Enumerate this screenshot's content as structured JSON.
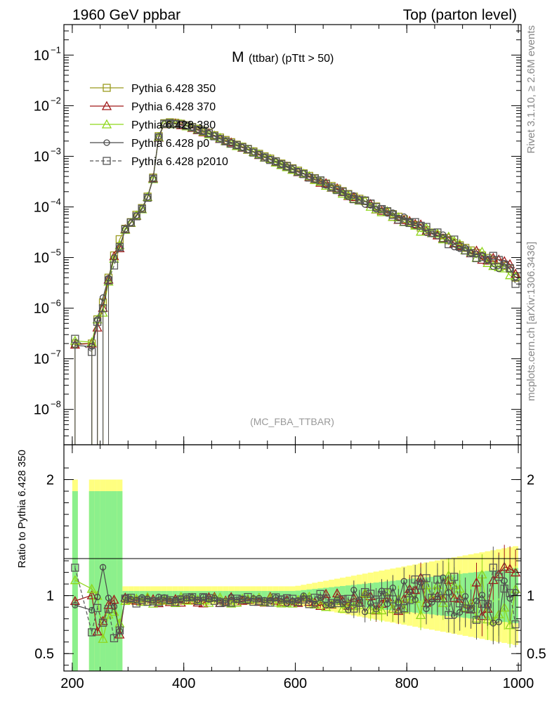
{
  "header": {
    "left": "1960 GeV ppbar",
    "right": "Top (parton level)"
  },
  "plot": {
    "title_main": "M",
    "title_sub": "(ttbar) (pTtt > 50)",
    "analysis_tag": "(MC_FBA_TTBAR)",
    "side_label_top": "Rivet 3.1.10, ≥ 2.6M events",
    "side_label_bottom": "mcplots.cern.ch [arXiv:1306.3436]",
    "ratio_ylabel": "Ratio to Pythia 6.428 350"
  },
  "colors": {
    "p350": "#9a9a1e",
    "p370": "#a01818",
    "p380": "#8fd61a",
    "p0": "#4a4a4a",
    "p2010": "#555555",
    "band_yellow": "#ffff80",
    "band_green": "#8cf08c"
  },
  "chart_data": {
    "type": "line",
    "x_axis": {
      "range": [
        185,
        1005
      ],
      "ticks": [
        "200",
        "400",
        "600",
        "800",
        "1000"
      ]
    },
    "main_y_axis": {
      "scale": "log",
      "range": [
        2e-09,
        0.4
      ],
      "tick_labels": [
        "10^-1",
        "10^-2",
        "10^-3",
        "10^-4",
        "10^-5",
        "10^-6",
        "10^-7",
        "10^-8"
      ]
    },
    "ratio_y_axis": {
      "range": [
        0.35,
        2.3
      ],
      "tick_labels": [
        "0.5",
        "1",
        "2"
      ]
    },
    "x": [
      205,
      235,
      245,
      255,
      265,
      275,
      285,
      295,
      305,
      315,
      325,
      335,
      345,
      355,
      365,
      375,
      385,
      395,
      405,
      415,
      425,
      435,
      445,
      455,
      465,
      475,
      485,
      495,
      505,
      515,
      525,
      535,
      545,
      555,
      565,
      575,
      585,
      595,
      605,
      615,
      625,
      635,
      645,
      655,
      665,
      675,
      685,
      695,
      705,
      715,
      725,
      735,
      745,
      755,
      765,
      775,
      785,
      795,
      805,
      815,
      825,
      835,
      845,
      855,
      865,
      875,
      885,
      895,
      905,
      915,
      925,
      935,
      945,
      955,
      965,
      975,
      985,
      995
    ],
    "series": [
      {
        "name": "Pythia 6.428 350",
        "key": "p350",
        "marker": "square",
        "dashed": false,
        "values": [
          2e-07,
          2e-07,
          6e-07,
          1.3e-06,
          4e-06,
          1.1e-05,
          2.3e-05,
          3.7e-05,
          5e-05,
          7e-05,
          9.5e-05,
          0.00016,
          0.00038,
          0.0025,
          0.0045,
          0.0047,
          0.0046,
          0.0044,
          0.0041,
          0.0038,
          0.0035,
          0.0032,
          0.0029,
          0.0026,
          0.00235,
          0.0021,
          0.0019,
          0.0017,
          0.00155,
          0.0014,
          0.00125,
          0.00112,
          0.001,
          0.0009,
          0.0008,
          0.00072,
          0.00065,
          0.00058,
          0.00052,
          0.00046,
          0.00041,
          0.00037,
          0.00033,
          0.00029,
          0.00026,
          0.00023,
          0.000205,
          0.00018,
          0.00016,
          0.000145,
          0.00013,
          0.000115,
          0.000102,
          9e-05,
          8e-05,
          7.2e-05,
          6.4e-05,
          5.7e-05,
          5e-05,
          4.4e-05,
          3.9e-05,
          3.5e-05,
          3.1e-05,
          2.75e-05,
          2.45e-05,
          2.2e-05,
          1.95e-05,
          1.75e-05,
          1.55e-05,
          1.38e-05,
          1.23e-05,
          1.1e-05,
          9.8e-06,
          8.7e-06,
          7.7e-06,
          6.8e-06,
          6e-06,
          4e-06
        ]
      },
      {
        "name": "Pythia 6.428 370",
        "key": "p370",
        "marker": "triangle",
        "dashed": false
      },
      {
        "name": "Pythia 6.428 380",
        "key": "p380",
        "marker": "triangle",
        "dashed": false
      },
      {
        "name": "Pythia 6.428 p0",
        "key": "p0",
        "marker": "circle",
        "dashed": false
      },
      {
        "name": "Pythia 6.428 p2010",
        "key": "p2010",
        "marker": "square",
        "dashed": true
      }
    ],
    "legend_position": "top-left"
  }
}
